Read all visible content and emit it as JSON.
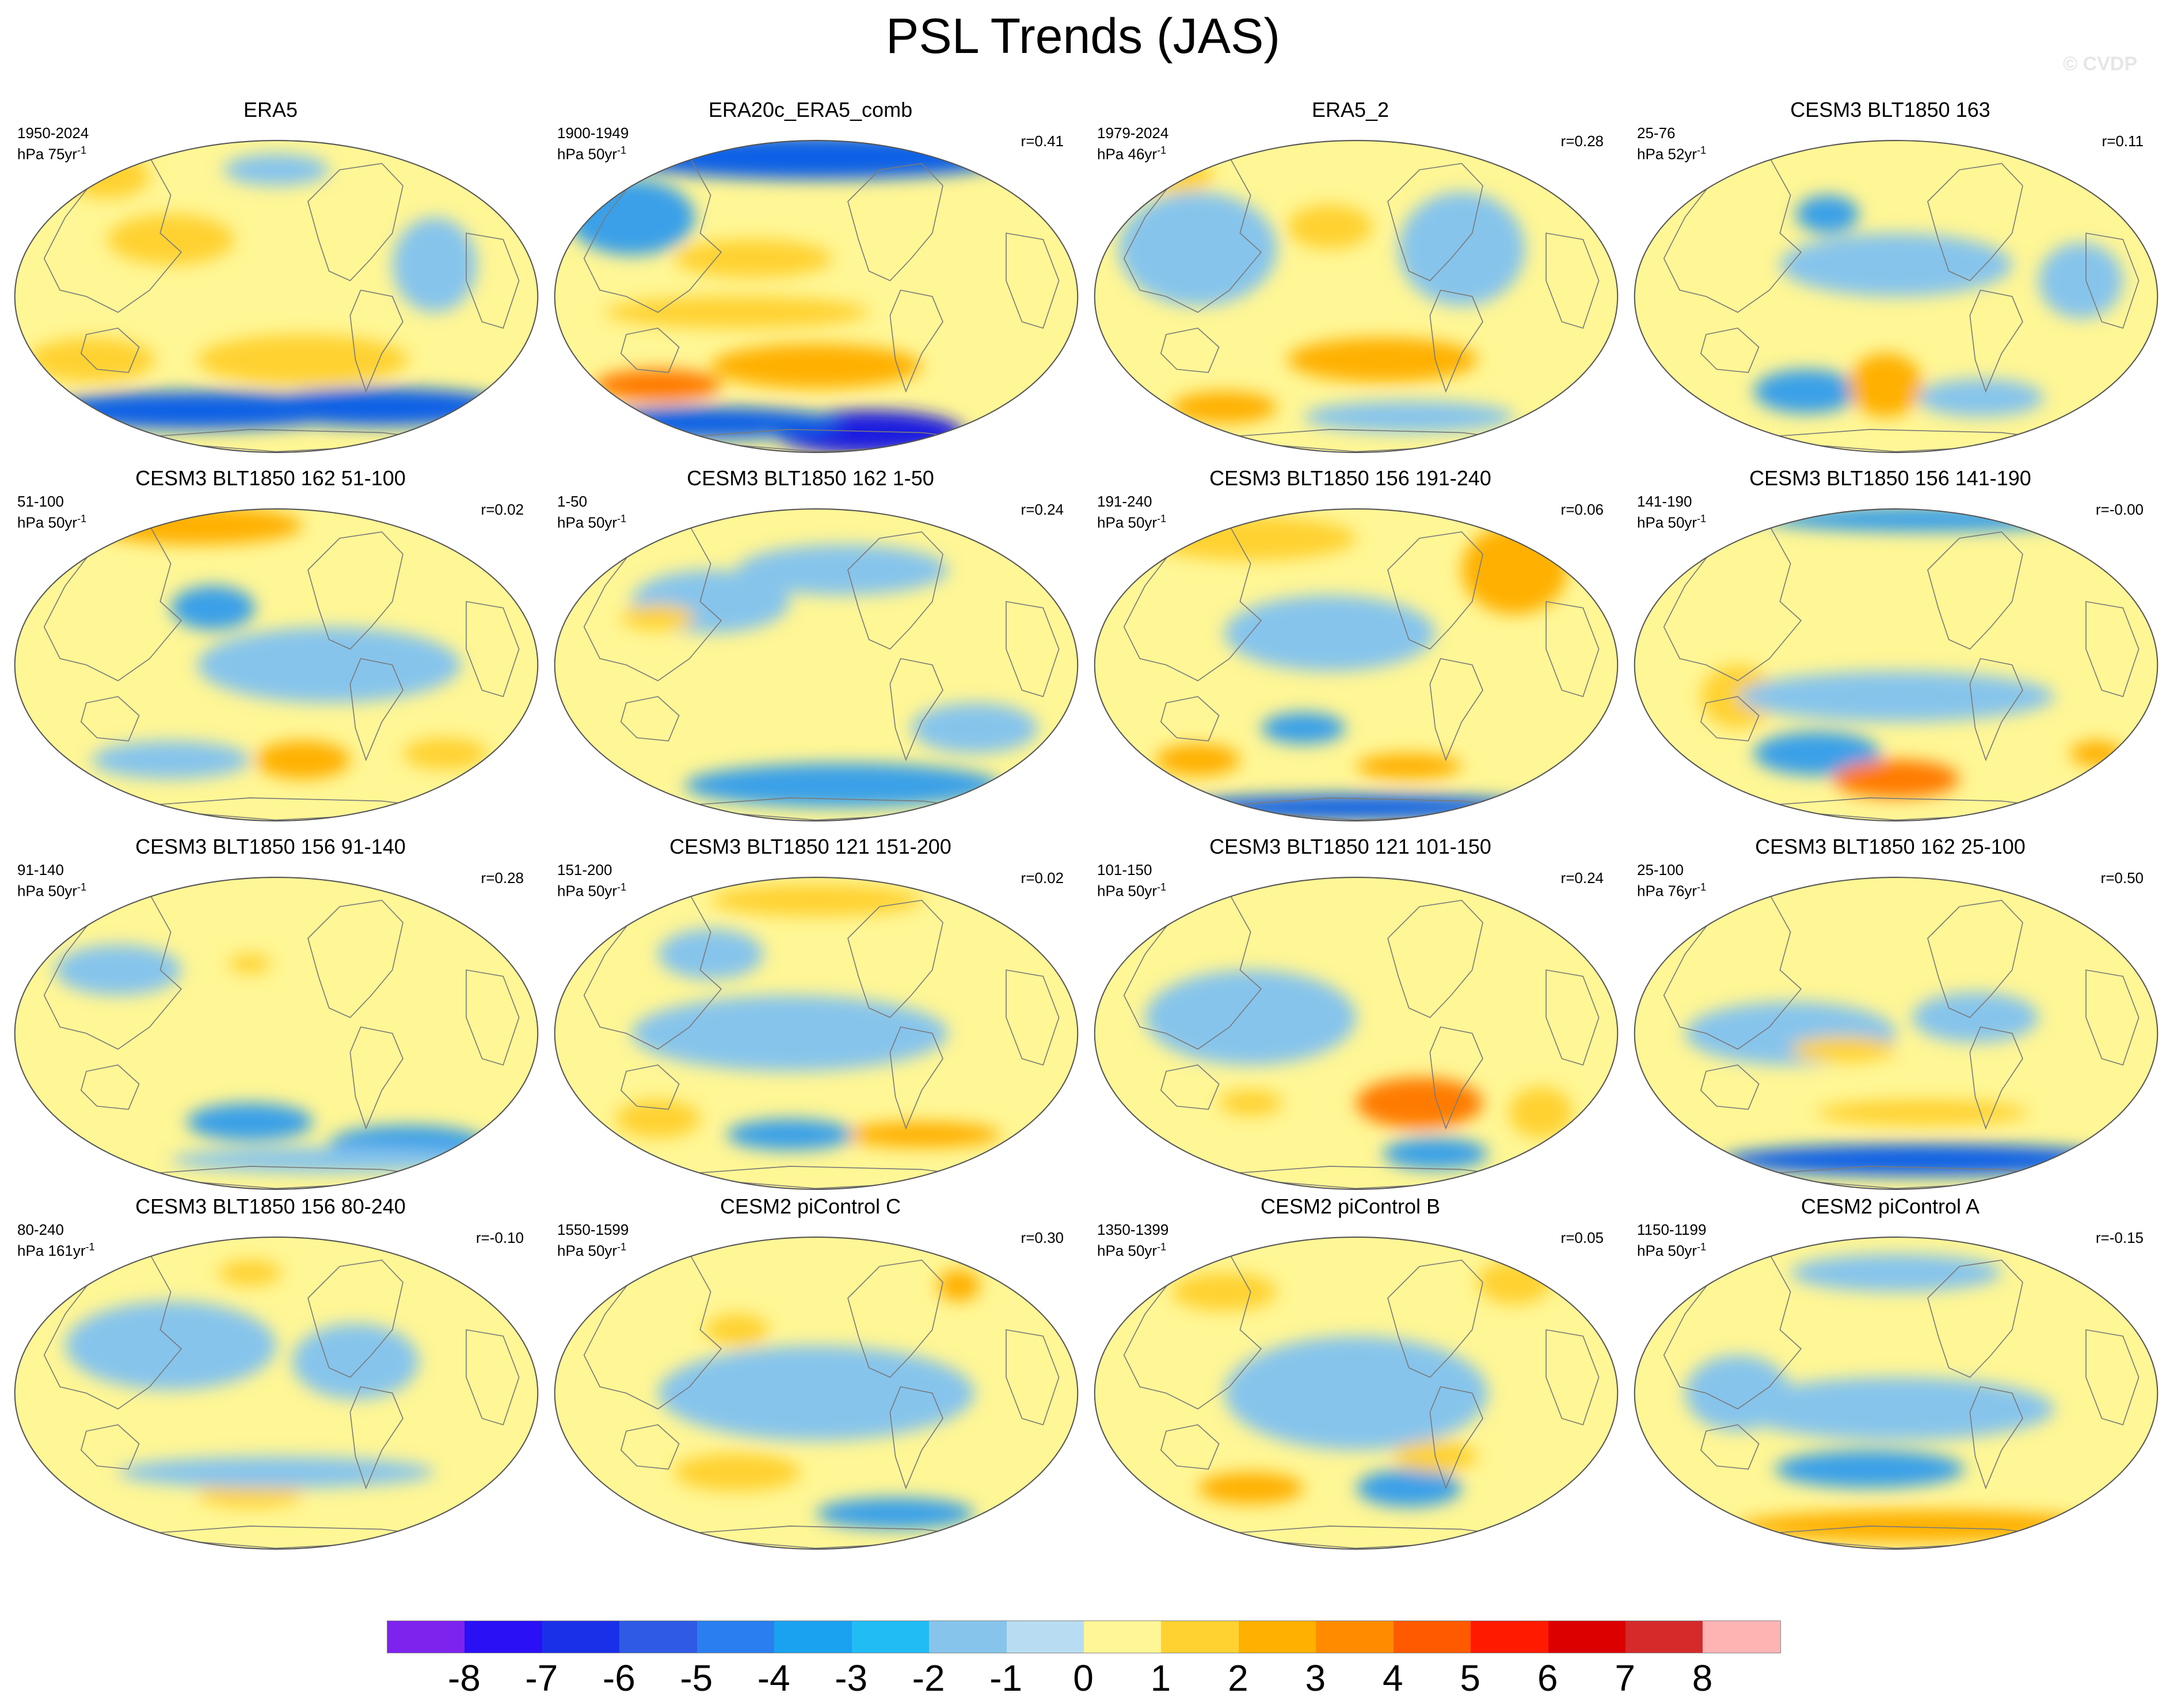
{
  "title": "PSL Trends (JAS)",
  "watermark": "© CVDP",
  "colors": {
    "ocean_base": "#b8dcf2",
    "neg1": "#86c4ec",
    "neg2": "#3aa0e8",
    "neg3": "#1060e6",
    "neg4": "#1a1ee0",
    "neg5": "#7b2be8",
    "pos1": "#fff695",
    "pos2": "#ffd232",
    "pos3": "#ffb000",
    "pos4": "#ff7a00",
    "pos5": "#e84010",
    "coast": "#7a7a7a"
  },
  "colorbar": {
    "colors": [
      "#7e22ee",
      "#2a10f5",
      "#1a30e8",
      "#2f5ae4",
      "#2a7ef0",
      "#1aa2f0",
      "#22bcf5",
      "#86c4ec",
      "#b8dcf2",
      "#fff695",
      "#ffd232",
      "#ffb000",
      "#ff8c00",
      "#ff5a00",
      "#ff1a00",
      "#dd0000",
      "#d42a2a",
      "#ffb4b4"
    ],
    "labels": [
      "-8",
      "-7",
      "-6",
      "-5",
      "-4",
      "-3",
      "-2",
      "-1",
      "0",
      "1",
      "2",
      "3",
      "4",
      "5",
      "6",
      "7",
      "8"
    ]
  },
  "panels": [
    {
      "title": "ERA5",
      "years": "1950-2024",
      "units_prefix": "hPa 75yr",
      "units_exp": "-1",
      "r": "",
      "blobs": [
        [
          "pos2",
          0.18,
          0.12,
          0.08,
          0.07
        ],
        [
          "pos2",
          0.3,
          0.32,
          0.12,
          0.08
        ],
        [
          "pos2",
          0.55,
          0.7,
          0.2,
          0.08
        ],
        [
          "pos2",
          0.15,
          0.7,
          0.12,
          0.07
        ],
        [
          "neg3",
          0.35,
          0.86,
          0.3,
          0.06
        ],
        [
          "neg3",
          0.7,
          0.85,
          0.25,
          0.06
        ],
        [
          "neg1",
          0.8,
          0.4,
          0.08,
          0.15
        ],
        [
          "neg1",
          0.5,
          0.1,
          0.1,
          0.05
        ]
      ]
    },
    {
      "title": "ERA20c_ERA5_comb",
      "years": "1900-1949",
      "units_prefix": "hPa 50yr",
      "units_exp": "-1",
      "r": "r=0.41",
      "blobs": [
        [
          "neg3",
          0.5,
          0.06,
          0.38,
          0.07
        ],
        [
          "neg2",
          0.15,
          0.25,
          0.12,
          0.12
        ],
        [
          "pos2",
          0.38,
          0.38,
          0.15,
          0.06
        ],
        [
          "pos3",
          0.5,
          0.72,
          0.2,
          0.07
        ],
        [
          "pos4",
          0.2,
          0.78,
          0.12,
          0.05
        ],
        [
          "neg4",
          0.6,
          0.93,
          0.18,
          0.07
        ],
        [
          "neg3",
          0.3,
          0.9,
          0.25,
          0.05
        ],
        [
          "pos2",
          0.35,
          0.55,
          0.25,
          0.05
        ]
      ]
    },
    {
      "title": "ERA5_2",
      "years": "1979-2024",
      "units_prefix": "hPa 46yr",
      "units_exp": "-1",
      "r": "r=0.28",
      "blobs": [
        [
          "neg1",
          0.2,
          0.35,
          0.15,
          0.18
        ],
        [
          "neg1",
          0.7,
          0.35,
          0.12,
          0.18
        ],
        [
          "pos2",
          0.45,
          0.28,
          0.08,
          0.07
        ],
        [
          "pos3",
          0.55,
          0.7,
          0.18,
          0.07
        ],
        [
          "pos3",
          0.25,
          0.85,
          0.1,
          0.05
        ],
        [
          "neg1",
          0.6,
          0.88,
          0.2,
          0.05
        ],
        [
          "pos2",
          0.15,
          0.12,
          0.08,
          0.05
        ]
      ]
    },
    {
      "title": "CESM3 BLT1850 163",
      "years": "25-76",
      "units_prefix": "hPa 52yr",
      "units_exp": "-1",
      "r": "r=0.11",
      "blobs": [
        [
          "neg2",
          0.37,
          0.24,
          0.06,
          0.06
        ],
        [
          "neg1",
          0.5,
          0.4,
          0.22,
          0.1
        ],
        [
          "neg2",
          0.33,
          0.8,
          0.1,
          0.07
        ],
        [
          "pos3",
          0.48,
          0.78,
          0.07,
          0.1
        ],
        [
          "neg1",
          0.66,
          0.82,
          0.12,
          0.06
        ],
        [
          "neg1",
          0.85,
          0.45,
          0.08,
          0.12
        ]
      ]
    },
    {
      "title": "CESM3 BLT1850 162 51-100",
      "years": "51-100",
      "units_prefix": "hPa 50yr",
      "units_exp": "-1",
      "r": "r=0.02",
      "blobs": [
        [
          "pos3",
          0.35,
          0.06,
          0.2,
          0.06
        ],
        [
          "neg2",
          0.38,
          0.32,
          0.08,
          0.07
        ],
        [
          "neg1",
          0.6,
          0.5,
          0.25,
          0.12
        ],
        [
          "pos3",
          0.55,
          0.8,
          0.09,
          0.06
        ],
        [
          "pos2",
          0.82,
          0.78,
          0.08,
          0.05
        ],
        [
          "neg1",
          0.3,
          0.8,
          0.15,
          0.06
        ]
      ]
    },
    {
      "title": "CESM3 BLT1850 162 1-50",
      "years": "1-50",
      "units_prefix": "hPa 50yr",
      "units_exp": "-1",
      "r": "r=0.24",
      "blobs": [
        [
          "neg1",
          0.3,
          0.3,
          0.15,
          0.1
        ],
        [
          "neg1",
          0.55,
          0.2,
          0.2,
          0.08
        ],
        [
          "neg2",
          0.55,
          0.88,
          0.3,
          0.07
        ],
        [
          "pos2",
          0.2,
          0.35,
          0.07,
          0.04
        ],
        [
          "neg1",
          0.8,
          0.7,
          0.12,
          0.08
        ]
      ]
    },
    {
      "title": "CESM3 BLT1850 156 191-240",
      "years": "191-240",
      "units_prefix": "hPa 50yr",
      "units_exp": "-1",
      "r": "r=0.06",
      "blobs": [
        [
          "pos2",
          0.3,
          0.1,
          0.2,
          0.07
        ],
        [
          "pos3",
          0.8,
          0.2,
          0.1,
          0.14
        ],
        [
          "neg1",
          0.45,
          0.4,
          0.2,
          0.12
        ],
        [
          "neg2",
          0.4,
          0.7,
          0.08,
          0.05
        ],
        [
          "pos3",
          0.2,
          0.8,
          0.08,
          0.05
        ],
        [
          "pos3",
          0.6,
          0.82,
          0.1,
          0.04
        ],
        [
          "neg3",
          0.5,
          0.95,
          0.35,
          0.04
        ]
      ]
    },
    {
      "title": "CESM3 BLT1850 156 141-190",
      "years": "141-190",
      "units_prefix": "hPa 50yr",
      "units_exp": "-1",
      "r": "r=-0.00",
      "blobs": [
        [
          "neg2",
          0.55,
          0.04,
          0.3,
          0.04
        ],
        [
          "pos2",
          0.2,
          0.6,
          0.07,
          0.1
        ],
        [
          "neg2",
          0.35,
          0.78,
          0.12,
          0.07
        ],
        [
          "pos4",
          0.5,
          0.86,
          0.12,
          0.06
        ],
        [
          "neg1",
          0.5,
          0.6,
          0.3,
          0.08
        ],
        [
          "pos3",
          0.88,
          0.78,
          0.05,
          0.04
        ]
      ]
    },
    {
      "title": "CESM3 BLT1850 156 91-140",
      "years": "91-140",
      "units_prefix": "hPa 50yr",
      "units_exp": "-1",
      "r": "r=0.28",
      "blobs": [
        [
          "neg1",
          0.2,
          0.3,
          0.12,
          0.08
        ],
        [
          "neg2",
          0.45,
          0.78,
          0.12,
          0.06
        ],
        [
          "neg2",
          0.75,
          0.85,
          0.15,
          0.06
        ],
        [
          "pos2",
          0.45,
          0.28,
          0.04,
          0.03
        ],
        [
          "neg1",
          0.6,
          0.9,
          0.3,
          0.04
        ]
      ]
    },
    {
      "title": "CESM3 BLT1850 121 151-200",
      "years": "151-200",
      "units_prefix": "hPa 50yr",
      "units_exp": "-1",
      "r": "r=0.02",
      "blobs": [
        [
          "neg1",
          0.45,
          0.5,
          0.3,
          0.12
        ],
        [
          "pos2",
          0.2,
          0.77,
          0.08,
          0.06
        ],
        [
          "pos3",
          0.7,
          0.82,
          0.15,
          0.04
        ],
        [
          "neg2",
          0.45,
          0.82,
          0.12,
          0.05
        ],
        [
          "pos2",
          0.5,
          0.08,
          0.2,
          0.05
        ],
        [
          "neg1",
          0.3,
          0.25,
          0.1,
          0.08
        ]
      ]
    },
    {
      "title": "CESM3 BLT1850 121 101-150",
      "years": "101-150",
      "units_prefix": "hPa 50yr",
      "units_exp": "-1",
      "r": "r=0.24",
      "blobs": [
        [
          "pos4",
          0.62,
          0.72,
          0.12,
          0.08
        ],
        [
          "neg2",
          0.65,
          0.88,
          0.1,
          0.05
        ],
        [
          "neg1",
          0.3,
          0.45,
          0.2,
          0.15
        ],
        [
          "pos2",
          0.85,
          0.75,
          0.06,
          0.08
        ],
        [
          "pos2",
          0.3,
          0.72,
          0.06,
          0.04
        ]
      ]
    },
    {
      "title": "CESM3 BLT1850 162 25-100",
      "years": "25-100",
      "units_prefix": "hPa 76yr",
      "units_exp": "-1",
      "r": "r=0.50",
      "blobs": [
        [
          "neg3",
          0.55,
          0.9,
          0.38,
          0.05
        ],
        [
          "pos2",
          0.55,
          0.75,
          0.2,
          0.04
        ],
        [
          "neg1",
          0.3,
          0.5,
          0.2,
          0.1
        ],
        [
          "neg1",
          0.65,
          0.45,
          0.12,
          0.08
        ],
        [
          "pos2",
          0.4,
          0.55,
          0.1,
          0.04
        ]
      ]
    },
    {
      "title": "CESM3 BLT1850 156 80-240",
      "years": "80-240",
      "units_prefix": "hPa 161yr",
      "units_exp": "-1",
      "r": "r=-0.10",
      "blobs": [
        [
          "neg1",
          0.3,
          0.35,
          0.2,
          0.14
        ],
        [
          "neg1",
          0.65,
          0.4,
          0.12,
          0.12
        ],
        [
          "pos2",
          0.45,
          0.12,
          0.06,
          0.04
        ],
        [
          "pos2",
          0.45,
          0.82,
          0.1,
          0.04
        ],
        [
          "neg1",
          0.5,
          0.75,
          0.3,
          0.05
        ]
      ]
    },
    {
      "title": "CESM2 piControl C",
      "years": "1550-1599",
      "units_prefix": "hPa 50yr",
      "units_exp": "-1",
      "r": "r=0.30",
      "blobs": [
        [
          "pos3",
          0.77,
          0.16,
          0.04,
          0.05
        ],
        [
          "neg1",
          0.5,
          0.5,
          0.3,
          0.15
        ],
        [
          "pos2",
          0.35,
          0.75,
          0.12,
          0.06
        ],
        [
          "neg2",
          0.65,
          0.88,
          0.15,
          0.05
        ],
        [
          "pos2",
          0.35,
          0.3,
          0.06,
          0.05
        ]
      ]
    },
    {
      "title": "CESM2 piControl B",
      "years": "1350-1399",
      "units_prefix": "hPa 50yr",
      "units_exp": "-1",
      "r": "r=0.05",
      "blobs": [
        [
          "pos2",
          0.25,
          0.18,
          0.1,
          0.06
        ],
        [
          "pos2",
          0.8,
          0.15,
          0.07,
          0.07
        ],
        [
          "neg1",
          0.5,
          0.5,
          0.25,
          0.18
        ],
        [
          "pos3",
          0.3,
          0.8,
          0.1,
          0.05
        ],
        [
          "neg2",
          0.6,
          0.8,
          0.1,
          0.06
        ],
        [
          "pos2",
          0.65,
          0.7,
          0.08,
          0.05
        ]
      ]
    },
    {
      "title": "CESM2 piControl A",
      "years": "1150-1199",
      "units_prefix": "hPa 50yr",
      "units_exp": "-1",
      "r": "r=-0.15",
      "blobs": [
        [
          "neg1",
          0.5,
          0.12,
          0.2,
          0.06
        ],
        [
          "neg2",
          0.45,
          0.74,
          0.18,
          0.06
        ],
        [
          "pos3",
          0.55,
          0.92,
          0.35,
          0.05
        ],
        [
          "neg1",
          0.5,
          0.55,
          0.3,
          0.1
        ],
        [
          "neg1",
          0.2,
          0.5,
          0.1,
          0.12
        ]
      ]
    }
  ]
}
